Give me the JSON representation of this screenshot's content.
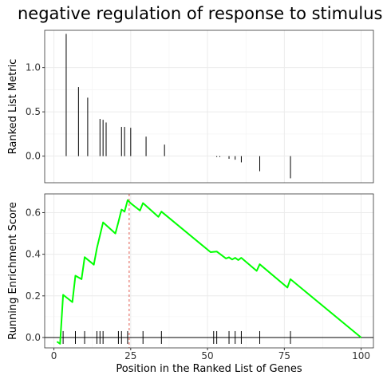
{
  "title": "negative regulation of response to stimulus",
  "chart_data": [
    {
      "type": "bar",
      "panel": "ranked-list-metric",
      "ylabel": "Ranked List Metric",
      "xlim": [
        -3,
        104
      ],
      "ylim": [
        -0.3,
        1.42
      ],
      "yticks": [
        0.0,
        0.5,
        1.0
      ],
      "ytick_labels": [
        "0.0",
        "0.5",
        "1.0"
      ],
      "grid": true,
      "x": [
        4,
        8,
        11,
        15,
        16,
        17,
        22,
        23,
        25,
        30,
        36,
        53,
        54,
        57,
        59,
        61,
        67,
        77
      ],
      "values": [
        1.38,
        0.78,
        0.66,
        0.42,
        0.41,
        0.38,
        0.33,
        0.33,
        0.32,
        0.22,
        0.13,
        -0.01,
        -0.01,
        -0.03,
        -0.04,
        -0.07,
        -0.17,
        -0.25
      ]
    },
    {
      "type": "line",
      "panel": "running-enrichment-score",
      "ylabel": "Running Enrichment Score",
      "xlabel": "Position in the Ranked List of Genes",
      "xlim": [
        -3,
        104
      ],
      "ylim": [
        -0.05,
        0.69
      ],
      "xticks": [
        0,
        25,
        50,
        75,
        100
      ],
      "xtick_labels": [
        "0",
        "25",
        "50",
        "75",
        "100"
      ],
      "yticks": [
        0.0,
        0.2,
        0.4,
        0.6
      ],
      "ytick_labels": [
        "0.0",
        "0.2",
        "0.4",
        "0.6"
      ],
      "grid": true,
      "line_color": "#00ff00",
      "peak_x": 24.5,
      "peak_color": "#e05a4f",
      "hits": [
        3,
        7,
        10,
        14,
        15,
        16,
        21,
        22,
        24,
        29,
        35,
        52,
        53,
        57,
        59,
        61,
        67,
        77
      ],
      "series": [
        {
          "x": [
            1,
            2,
            3,
            6,
            7,
            9,
            10,
            13,
            14,
            16,
            20,
            21,
            22,
            23,
            24,
            25,
            28,
            29,
            34,
            35,
            51,
            53,
            56,
            57,
            58,
            59,
            60,
            61,
            66,
            67,
            76,
            77,
            100
          ],
          "values": [
            -0.02,
            -0.03,
            0.205,
            0.17,
            0.297,
            0.28,
            0.386,
            0.35,
            0.43,
            0.553,
            0.5,
            0.555,
            0.615,
            0.605,
            0.66,
            0.645,
            0.61,
            0.646,
            0.58,
            0.605,
            0.41,
            0.413,
            0.38,
            0.385,
            0.375,
            0.383,
            0.372,
            0.383,
            0.32,
            0.352,
            0.24,
            0.28,
            0.0
          ]
        }
      ]
    }
  ]
}
